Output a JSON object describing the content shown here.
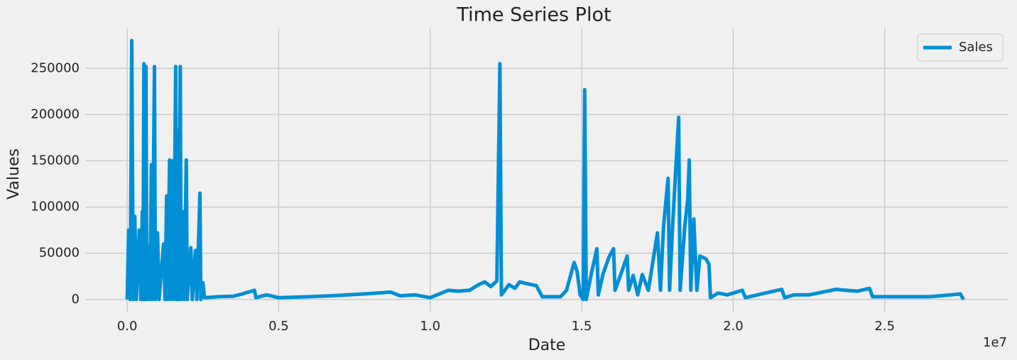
{
  "chart_data": {
    "type": "line",
    "title": "Time Series Plot",
    "xlabel": "Date",
    "ylabel": "Values",
    "x_offset_label": "1e7",
    "x": [
      0,
      50000,
      100000,
      150000,
      200000,
      250000,
      300000,
      400000,
      450000,
      500000,
      520000,
      550000,
      580000,
      620000,
      650000,
      700000,
      750000,
      800000,
      830000,
      900000,
      930000,
      1000000,
      1050000,
      1200000,
      1250000,
      1300000,
      1330000,
      1400000,
      1430000,
      1500000,
      1530000,
      1600000,
      1630000,
      1680000,
      1700000,
      1750000,
      1780000,
      1850000,
      1880000,
      1950000,
      1980000,
      2100000,
      2150000,
      2250000,
      2300000,
      2400000,
      2430000,
      2500000,
      2550000,
      3000000,
      3500000,
      3800000,
      4200000,
      4250000,
      4600000,
      5000000,
      6000000,
      6700000,
      7300000,
      7800000,
      8700000,
      9000000,
      9500000,
      10000000,
      10600000,
      10900000,
      11300000,
      11600000,
      11800000,
      12000000,
      12200000,
      12300000,
      12350000,
      12600000,
      12800000,
      12950000,
      13200000,
      13500000,
      13700000,
      14300000,
      14500000,
      14650000,
      14750000,
      14850000,
      14950000,
      15050000,
      15100000,
      15150000,
      15300000,
      15500000,
      15550000,
      15700000,
      15900000,
      16050000,
      16100000,
      16300000,
      16500000,
      16550000,
      16700000,
      16850000,
      17000000,
      17200000,
      17500000,
      17600000,
      17700000,
      17850000,
      17900000,
      18000000,
      18200000,
      18250000,
      18400000,
      18500000,
      18550000,
      18600000,
      18700000,
      18800000,
      18900000,
      19100000,
      19200000,
      19250000,
      19500000,
      19800000,
      20300000,
      20400000,
      21600000,
      21700000,
      22000000,
      22500000,
      23400000,
      23700000,
      24100000,
      24500000,
      24600000,
      25500000,
      26500000,
      27500000,
      27600000
    ],
    "series": [
      {
        "name": "Sales",
        "color": "#008fd5",
        "values": [
          0,
          75000,
          0,
          280000,
          0,
          90000,
          0,
          75000,
          0,
          95000,
          0,
          255000,
          0,
          252000,
          0,
          58000,
          0,
          146000,
          0,
          252000,
          0,
          72000,
          0,
          60000,
          0,
          112000,
          0,
          151000,
          0,
          150000,
          0,
          252000,
          0,
          183000,
          0,
          252000,
          0,
          95000,
          0,
          151000,
          0,
          56000,
          0,
          53000,
          0,
          115000,
          0,
          18000,
          2000,
          3000,
          3500,
          6000,
          10000,
          2000,
          5000,
          2000,
          3000,
          4000,
          5000,
          6000,
          8000,
          4000,
          5000,
          2000,
          10000,
          9000,
          10000,
          16000,
          19000,
          14000,
          20000,
          255000,
          5000,
          16000,
          12000,
          19000,
          17000,
          15000,
          3000,
          3000,
          10000,
          28000,
          40000,
          30000,
          5000,
          0,
          227000,
          0,
          25000,
          55000,
          5000,
          27000,
          46000,
          55000,
          10000,
          28000,
          47000,
          10000,
          26000,
          5000,
          27000,
          10000,
          72000,
          10000,
          79000,
          131000,
          10000,
          80000,
          197000,
          10000,
          78000,
          108000,
          151000,
          10000,
          87000,
          10000,
          47000,
          44000,
          38000,
          2000,
          7000,
          5000,
          10000,
          2000,
          11000,
          2000,
          5000,
          5000,
          11000,
          10000,
          9000,
          12000,
          3000,
          3000,
          3000,
          6000,
          0
        ]
      }
    ],
    "xlim": [
      -1385000,
      29085000
    ],
    "xticks": [
      {
        "value": 0,
        "label": "0.0"
      },
      {
        "value": 5000000,
        "label": "0.5"
      },
      {
        "value": 10000000,
        "label": "1.0"
      },
      {
        "value": 15000000,
        "label": "1.5"
      },
      {
        "value": 20000000,
        "label": "2.0"
      },
      {
        "value": 25000000,
        "label": "2.5"
      }
    ],
    "ylim": [
      -14000,
      294000
    ],
    "yticks": [
      0,
      50000,
      100000,
      150000,
      200000,
      250000
    ],
    "grid": true,
    "legend": "upper right"
  }
}
